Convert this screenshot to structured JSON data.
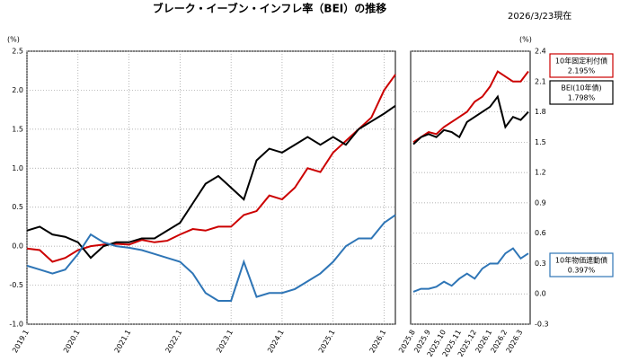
{
  "chart_data": [
    {
      "type": "line",
      "title": "ブレーク・イーブン・インフレ率（BEI）の推移",
      "subtitle": "2026/3/23現在",
      "y_label": "(%)",
      "x": [
        2019.0,
        2019.25,
        2019.5,
        2019.75,
        2020.0,
        2020.25,
        2020.5,
        2020.75,
        2021.0,
        2021.25,
        2021.5,
        2021.75,
        2022.0,
        2022.25,
        2022.5,
        2022.75,
        2023.0,
        2023.25,
        2023.5,
        2023.75,
        2024.0,
        2024.25,
        2024.5,
        2024.75,
        2025.0,
        2025.25,
        2025.5,
        2025.75,
        2026.0,
        2026.22
      ],
      "xlim": [
        2019.0,
        2026.22
      ],
      "xticks": [
        {
          "value": 2019.0,
          "label": "2019.1"
        },
        {
          "value": 2020.0,
          "label": "2020.1"
        },
        {
          "value": 2021.0,
          "label": "2021.1"
        },
        {
          "value": 2022.0,
          "label": "2022.1"
        },
        {
          "value": 2023.0,
          "label": "2023.1"
        },
        {
          "value": 2024.0,
          "label": "2024.1"
        },
        {
          "value": 2025.0,
          "label": "2025.1"
        },
        {
          "value": 2026.0,
          "label": "2026.1"
        }
      ],
      "ylim": [
        -1.0,
        2.5
      ],
      "yticks": [
        {
          "value": -1.0,
          "label": "-1.0"
        },
        -0.5,
        {
          "value": 0.0,
          "label": "0.0"
        },
        0.5,
        {
          "value": 1.0,
          "label": "1.0"
        },
        1.5,
        {
          "value": 2.0,
          "label": "2.0"
        },
        2.5
      ],
      "series": [
        {
          "color": "#cc0000",
          "values": [
            -0.03,
            -0.05,
            -0.2,
            -0.15,
            -0.05,
            0.0,
            0.02,
            0.03,
            0.02,
            0.08,
            0.05,
            0.07,
            0.15,
            0.22,
            0.2,
            0.25,
            0.25,
            0.4,
            0.45,
            0.65,
            0.6,
            0.75,
            1.0,
            0.95,
            1.2,
            1.35,
            1.5,
            1.65,
            2.0,
            2.2
          ]
        },
        {
          "color": "#000000",
          "values": [
            0.2,
            0.25,
            0.15,
            0.12,
            0.05,
            -0.15,
            0.0,
            0.05,
            0.05,
            0.1,
            0.1,
            0.2,
            0.3,
            0.55,
            0.8,
            0.9,
            0.75,
            0.6,
            1.1,
            1.25,
            1.2,
            1.3,
            1.4,
            1.3,
            1.4,
            1.3,
            1.5,
            1.6,
            1.7,
            1.8
          ]
        },
        {
          "color": "#2e75b6",
          "values": [
            -0.25,
            -0.3,
            -0.35,
            -0.3,
            -0.1,
            0.15,
            0.05,
            0.0,
            -0.02,
            -0.05,
            -0.1,
            -0.15,
            -0.2,
            -0.35,
            -0.6,
            -0.7,
            -0.7,
            -0.2,
            -0.65,
            -0.6,
            -0.6,
            -0.55,
            -0.45,
            -0.35,
            -0.2,
            0.0,
            0.1,
            0.1,
            0.3,
            0.4
          ]
        }
      ]
    },
    {
      "type": "line",
      "y_label": "(%)",
      "categories": [
        "2025.8",
        null,
        "2025.9",
        null,
        "2025.10",
        null,
        "2025.11",
        null,
        "2025.12",
        null,
        "2026.1",
        null,
        "2026.2",
        null,
        "2026.3",
        null
      ],
      "ylim": [
        -0.3,
        2.4
      ],
      "yticks": [
        -0.3,
        {
          "value": 0.0,
          "label": "0.0"
        },
        0.3,
        0.6,
        0.9,
        1.2,
        1.5,
        1.8,
        2.1,
        2.4
      ],
      "series": [
        {
          "name": "10年固定利付債",
          "last_label": "2.195%",
          "color": "#cc0000",
          "values": [
            1.5,
            1.55,
            1.6,
            1.58,
            1.65,
            1.7,
            1.75,
            1.8,
            1.9,
            1.95,
            2.05,
            2.2,
            2.15,
            2.1,
            2.1,
            2.2
          ]
        },
        {
          "name": "BEI(10年債)",
          "last_label": "1.798%",
          "color": "#000000",
          "values": [
            1.48,
            1.55,
            1.58,
            1.55,
            1.62,
            1.6,
            1.55,
            1.7,
            1.75,
            1.8,
            1.85,
            1.95,
            1.65,
            1.75,
            1.72,
            1.8
          ]
        },
        {
          "name": "10年物価連動債",
          "last_label": "0.397%",
          "color": "#2e75b6",
          "values": [
            0.02,
            0.05,
            0.05,
            0.07,
            0.12,
            0.08,
            0.15,
            0.2,
            0.15,
            0.25,
            0.3,
            0.3,
            0.4,
            0.45,
            0.35,
            0.4
          ]
        }
      ]
    }
  ]
}
